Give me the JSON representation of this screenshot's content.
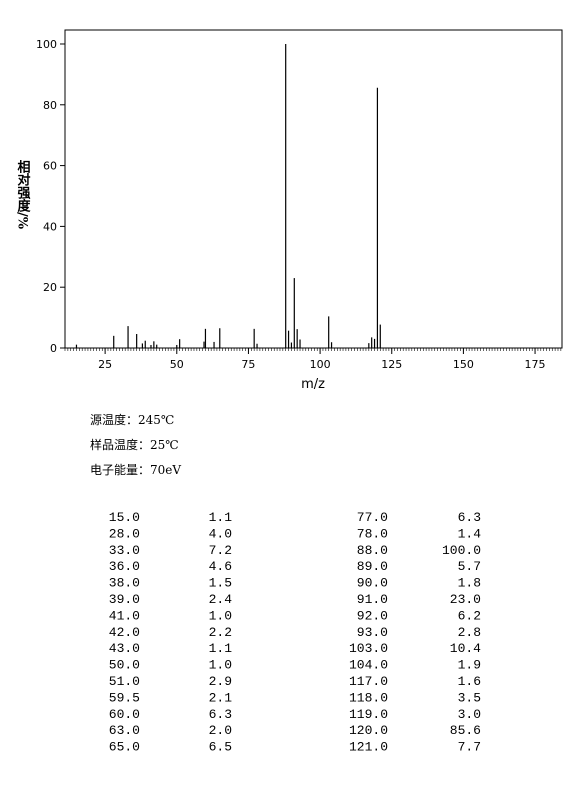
{
  "chart_data": {
    "type": "stem",
    "x_label": "m/z",
    "y_label": "相对强度/%",
    "x": [
      15,
      28,
      33,
      36,
      38,
      39,
      41,
      42,
      43,
      50,
      51,
      59.5,
      60,
      63,
      65,
      77,
      78,
      88,
      89,
      90,
      91,
      92,
      93,
      103,
      104,
      117,
      118,
      119,
      120,
      121
    ],
    "values": [
      1.1,
      4.0,
      7.2,
      4.6,
      1.5,
      2.4,
      1.0,
      2.2,
      1.1,
      1.0,
      2.9,
      2.1,
      6.3,
      2.0,
      6.5,
      6.3,
      1.4,
      100.0,
      5.7,
      1.8,
      23.0,
      6.2,
      2.8,
      10.4,
      1.9,
      1.6,
      3.5,
      3.0,
      85.6,
      7.7
    ],
    "color": "#000000",
    "xlim": [
      11,
      184.4
    ],
    "xticks": [
      25,
      50,
      75,
      100,
      125,
      150,
      175
    ],
    "ylim": [
      0,
      104.6
    ],
    "yticks": [
      0,
      20,
      40,
      60,
      80,
      100
    ]
  },
  "conditions": [
    "源温度：245℃",
    "样品温度：25℃",
    "电子能量：70eV"
  ],
  "table": {
    "rows": [
      [
        "15.0",
        "1.1",
        "77.0",
        "6.3"
      ],
      [
        "28.0",
        "4.0",
        "78.0",
        "1.4"
      ],
      [
        "33.0",
        "7.2",
        "88.0",
        "100.0"
      ],
      [
        "36.0",
        "4.6",
        "89.0",
        "5.7"
      ],
      [
        "38.0",
        "1.5",
        "90.0",
        "1.8"
      ],
      [
        "39.0",
        "2.4",
        "91.0",
        "23.0"
      ],
      [
        "41.0",
        "1.0",
        "92.0",
        "6.2"
      ],
      [
        "42.0",
        "2.2",
        "93.0",
        "2.8"
      ],
      [
        "43.0",
        "1.1",
        "103.0",
        "10.4"
      ],
      [
        "50.0",
        "1.0",
        "104.0",
        "1.9"
      ],
      [
        "51.0",
        "2.9",
        "117.0",
        "1.6"
      ],
      [
        "59.5",
        "2.1",
        "118.0",
        "3.5"
      ],
      [
        "60.0",
        "6.3",
        "119.0",
        "3.0"
      ],
      [
        "63.0",
        "2.0",
        "120.0",
        "85.6"
      ],
      [
        "65.0",
        "6.5",
        "121.0",
        "7.7"
      ]
    ]
  }
}
